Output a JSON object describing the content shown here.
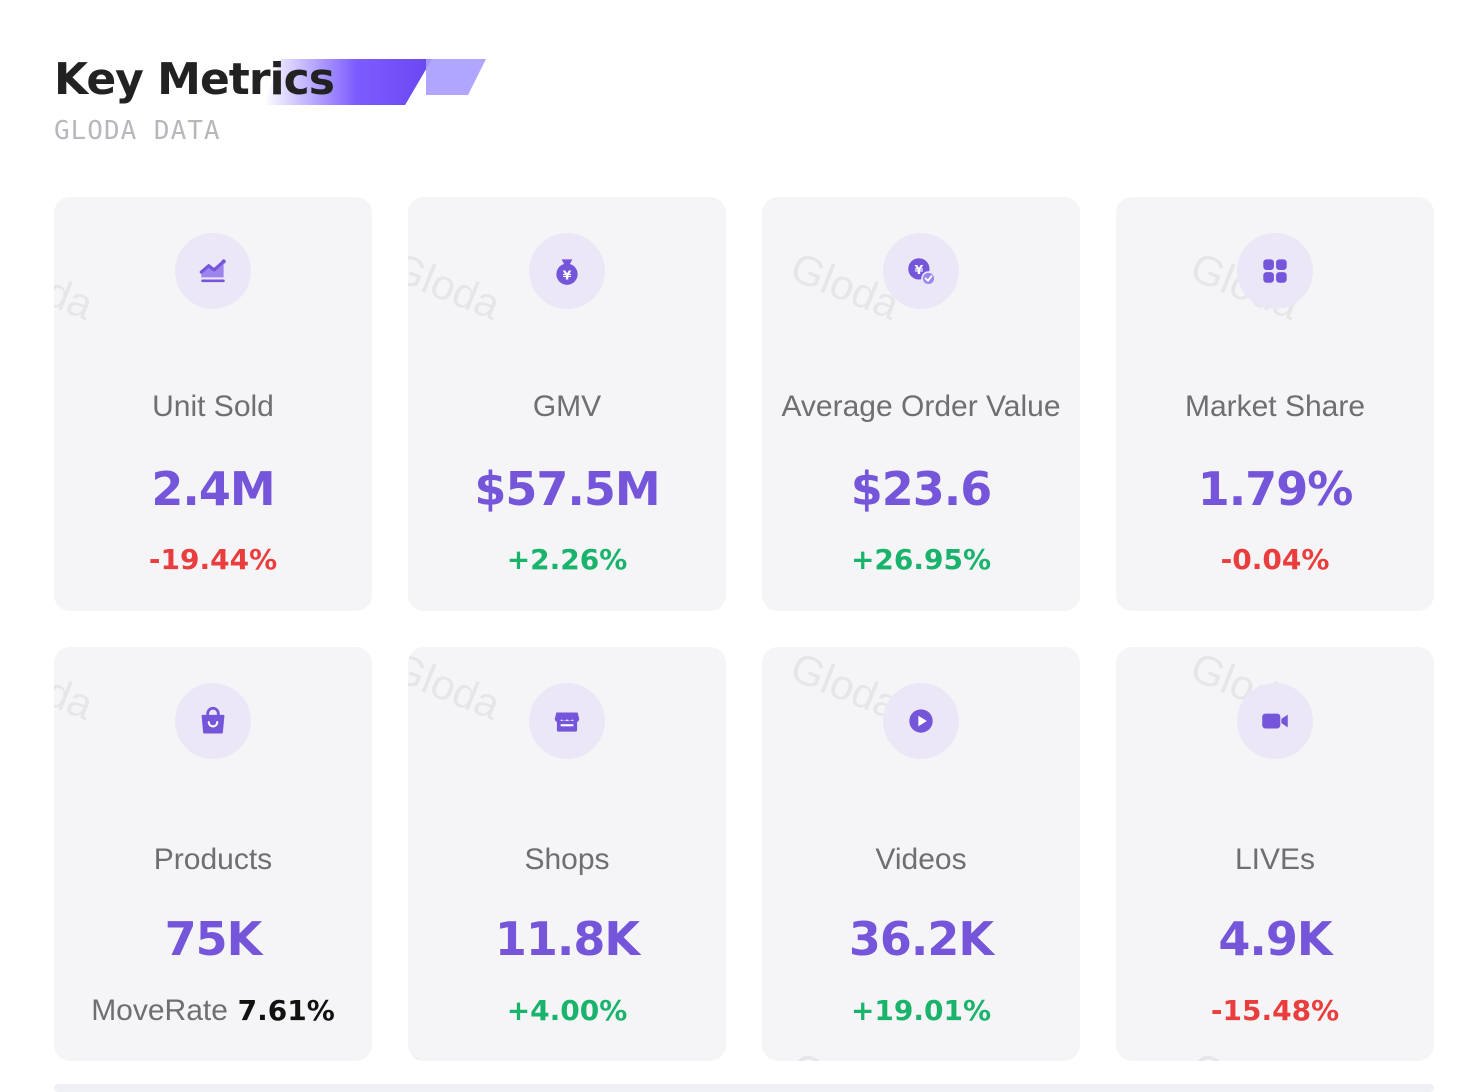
{
  "header": {
    "title": "Key Metrics",
    "subtitle": "GLODA DATA"
  },
  "watermark_text": "Gloda",
  "colors": {
    "accent": "#7555d9",
    "negative": "#ea3d3d",
    "positive": "#19b36b"
  },
  "metrics": [
    {
      "icon": "trend-chart-icon",
      "label": "Unit Sold",
      "value": "2.4M",
      "change": "-19.44%",
      "trend": "negative"
    },
    {
      "icon": "money-bag-icon",
      "label": "GMV",
      "value": "$57.5M",
      "change": "+2.26%",
      "trend": "positive"
    },
    {
      "icon": "coin-check-icon",
      "label": "Average Order Value",
      "value": "$23.6",
      "change": "+26.95%",
      "trend": "positive"
    },
    {
      "icon": "grid-squares-icon",
      "label": "Market Share",
      "value": "1.79%",
      "change": "-0.04%",
      "trend": "negative"
    },
    {
      "icon": "shopping-bag-icon",
      "label": "Products",
      "value": "75K",
      "move_label": "MoveRate",
      "move_value": "7.61%"
    },
    {
      "icon": "store-icon",
      "label": "Shops",
      "value": "11.8K",
      "change": "+4.00%",
      "trend": "positive"
    },
    {
      "icon": "play-circle-icon",
      "label": "Videos",
      "value": "36.2K",
      "change": "+19.01%",
      "trend": "positive"
    },
    {
      "icon": "video-camera-icon",
      "label": "LIVEs",
      "value": "4.9K",
      "change": "-15.48%",
      "trend": "negative"
    }
  ]
}
